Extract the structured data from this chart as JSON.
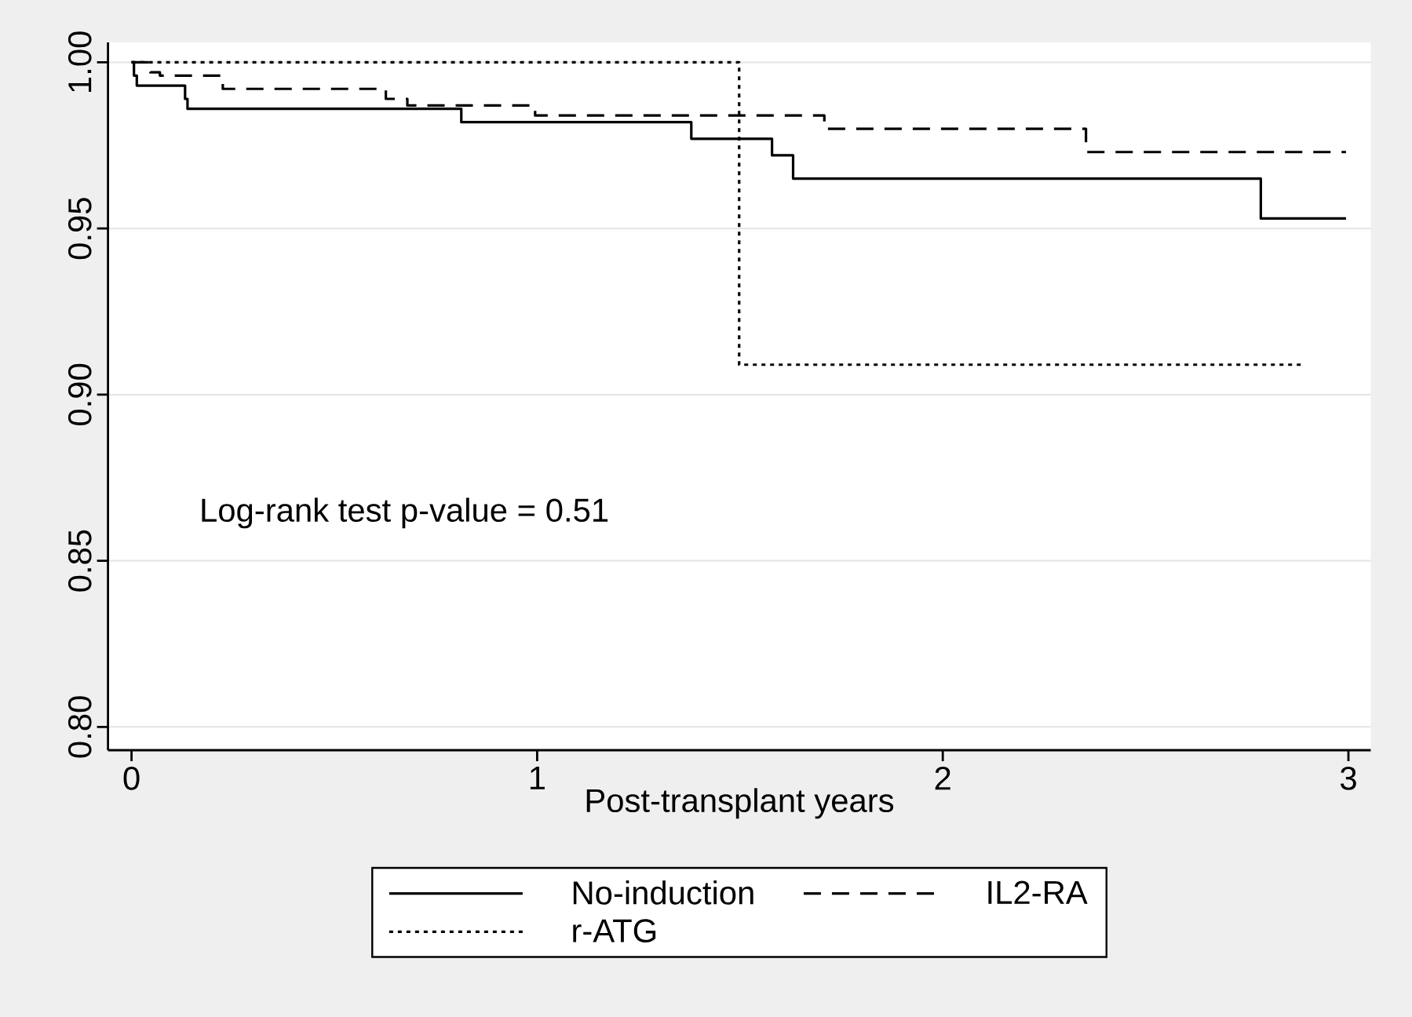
{
  "chart_data": {
    "type": "step",
    "xlabel": "Post-transplant years",
    "xlim": [
      -0.058,
      3.055
    ],
    "ylim": [
      0.793,
      1.006
    ],
    "xticks": [
      0,
      1,
      2,
      3
    ],
    "yticks": [
      {
        "value": 0.8,
        "label": "0.80"
      },
      {
        "value": 0.85,
        "label": "0.85"
      },
      {
        "value": 0.9,
        "label": "0.90"
      },
      {
        "value": 0.95,
        "label": "0.95"
      },
      {
        "value": 1.0,
        "label": "1.00"
      }
    ],
    "grid": "y",
    "legend": "bottom",
    "annotations": [
      "Log-rank test p-value = 0.51"
    ],
    "series": [
      {
        "name": "No-induction",
        "color": "#000000",
        "line_style": "solid",
        "x": [
          0,
          0.006,
          0.013,
          0.132,
          0.138,
          0.813,
          1.38,
          1.579,
          1.631,
          2.784,
          2.994
        ],
        "values": [
          1.0,
          0.996,
          0.993,
          0.989,
          0.986,
          0.982,
          0.977,
          0.972,
          0.965,
          0.953,
          0.953
        ]
      },
      {
        "name": "IL2-RA",
        "color": "#000000",
        "line_style": "dashed",
        "x": [
          0,
          0.046,
          0.07,
          0.225,
          0.627,
          0.68,
          0.995,
          1.708,
          2.353,
          2.994
        ],
        "values": [
          1.0,
          0.997,
          0.996,
          0.992,
          0.989,
          0.987,
          0.984,
          0.98,
          0.973,
          0.973
        ]
      },
      {
        "name": "r-ATG",
        "color": "#000000",
        "line_style": "dotted",
        "x": [
          0,
          1.498,
          2.893
        ],
        "values": [
          1.0,
          0.909,
          0.909
        ]
      }
    ]
  }
}
